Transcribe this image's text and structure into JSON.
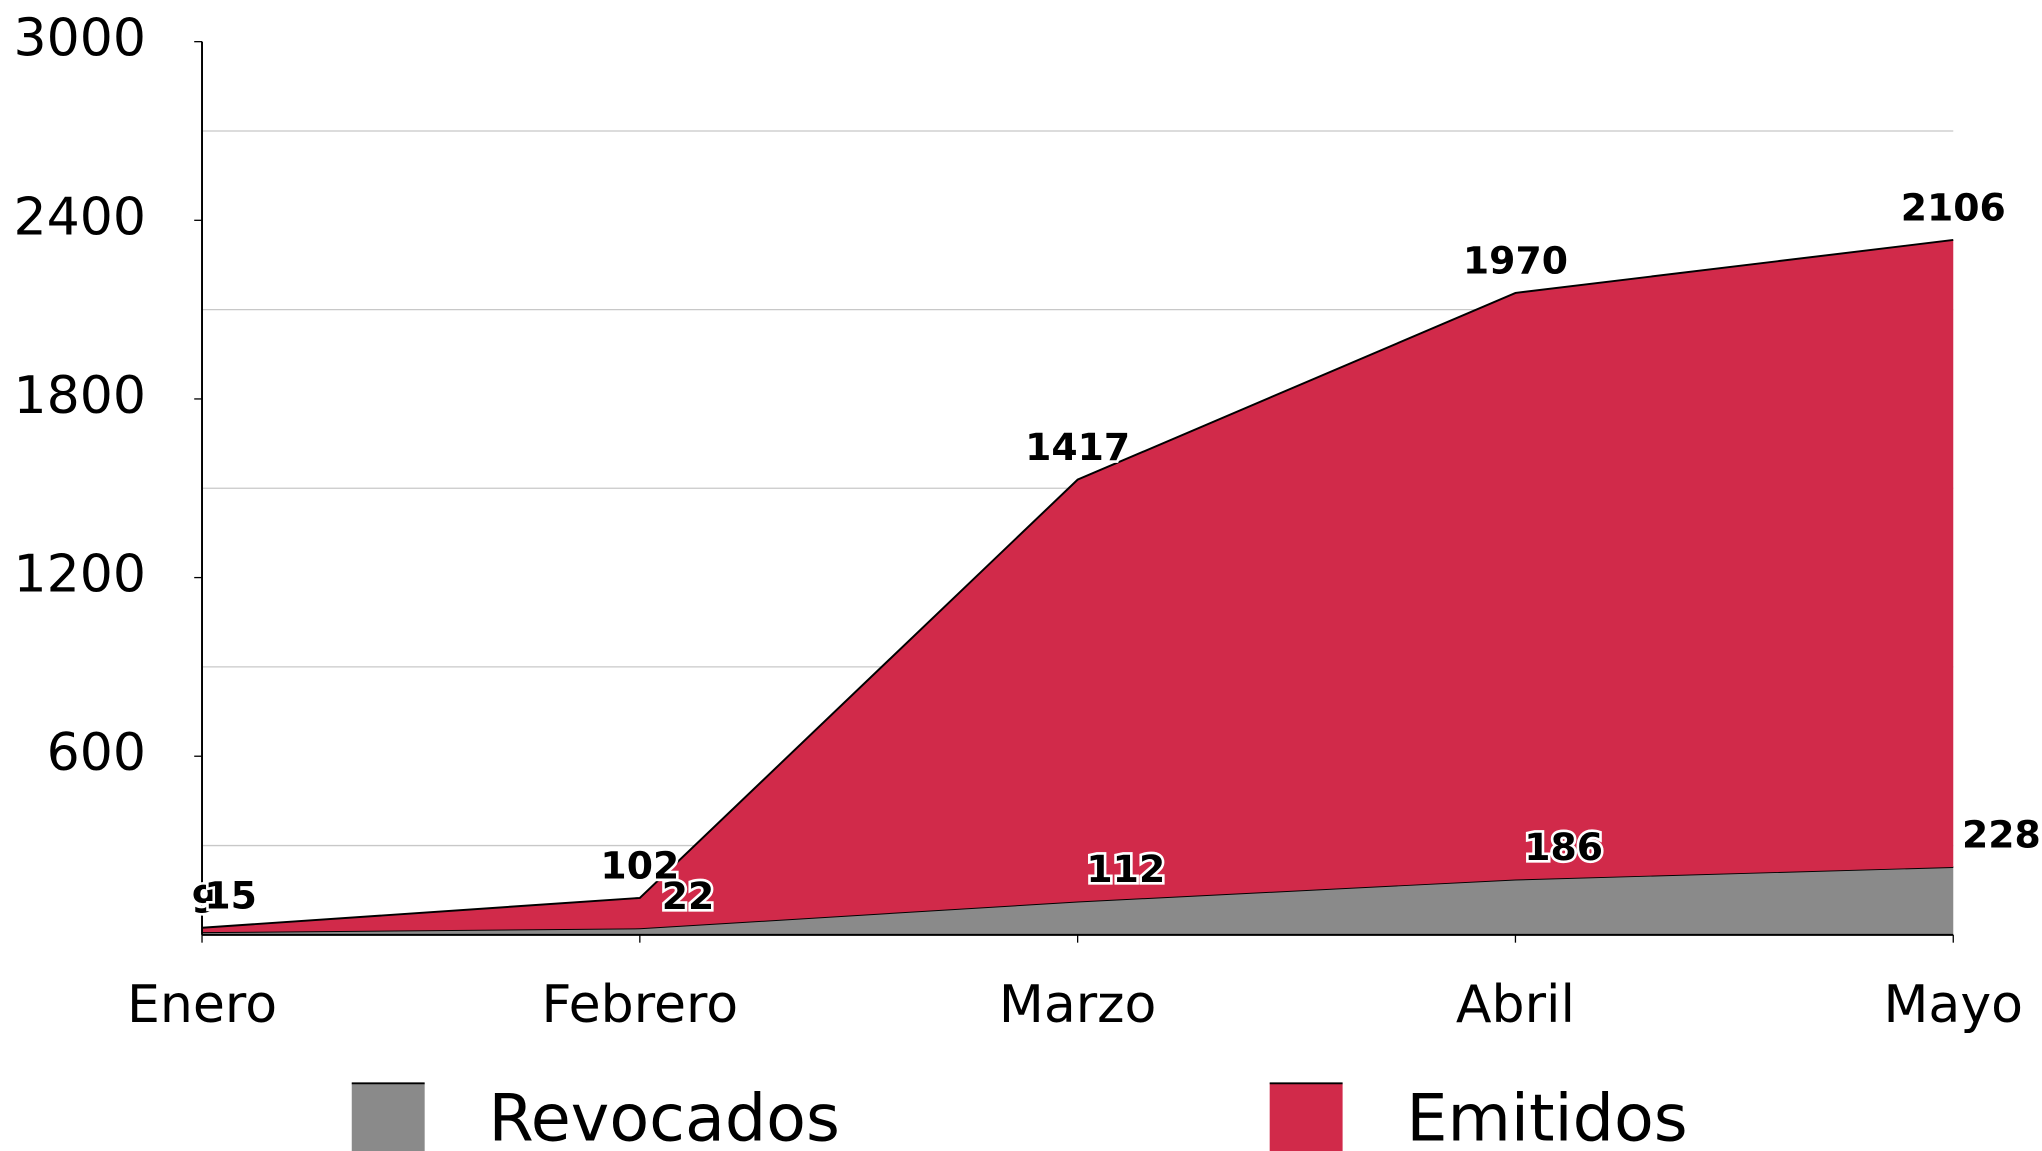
{
  "chart_data": {
    "type": "stacked_area",
    "categories": [
      "Enero",
      "Febrero",
      "Marzo",
      "Abril",
      "Mayo"
    ],
    "series": [
      {
        "name": "Revocados",
        "color": "#8a8a8a",
        "values": [
          9,
          22,
          112,
          186,
          228
        ]
      },
      {
        "name": "Emitidos",
        "color": "#d12a4a",
        "values": [
          15,
          102,
          1417,
          1970,
          2106
        ]
      }
    ],
    "ylim": [
      0,
      3000
    ],
    "yticks": [
      600,
      1200,
      1800,
      2400,
      3000
    ],
    "ygrid": [
      300,
      900,
      1500,
      2100,
      2700
    ],
    "legend": "bottom"
  }
}
